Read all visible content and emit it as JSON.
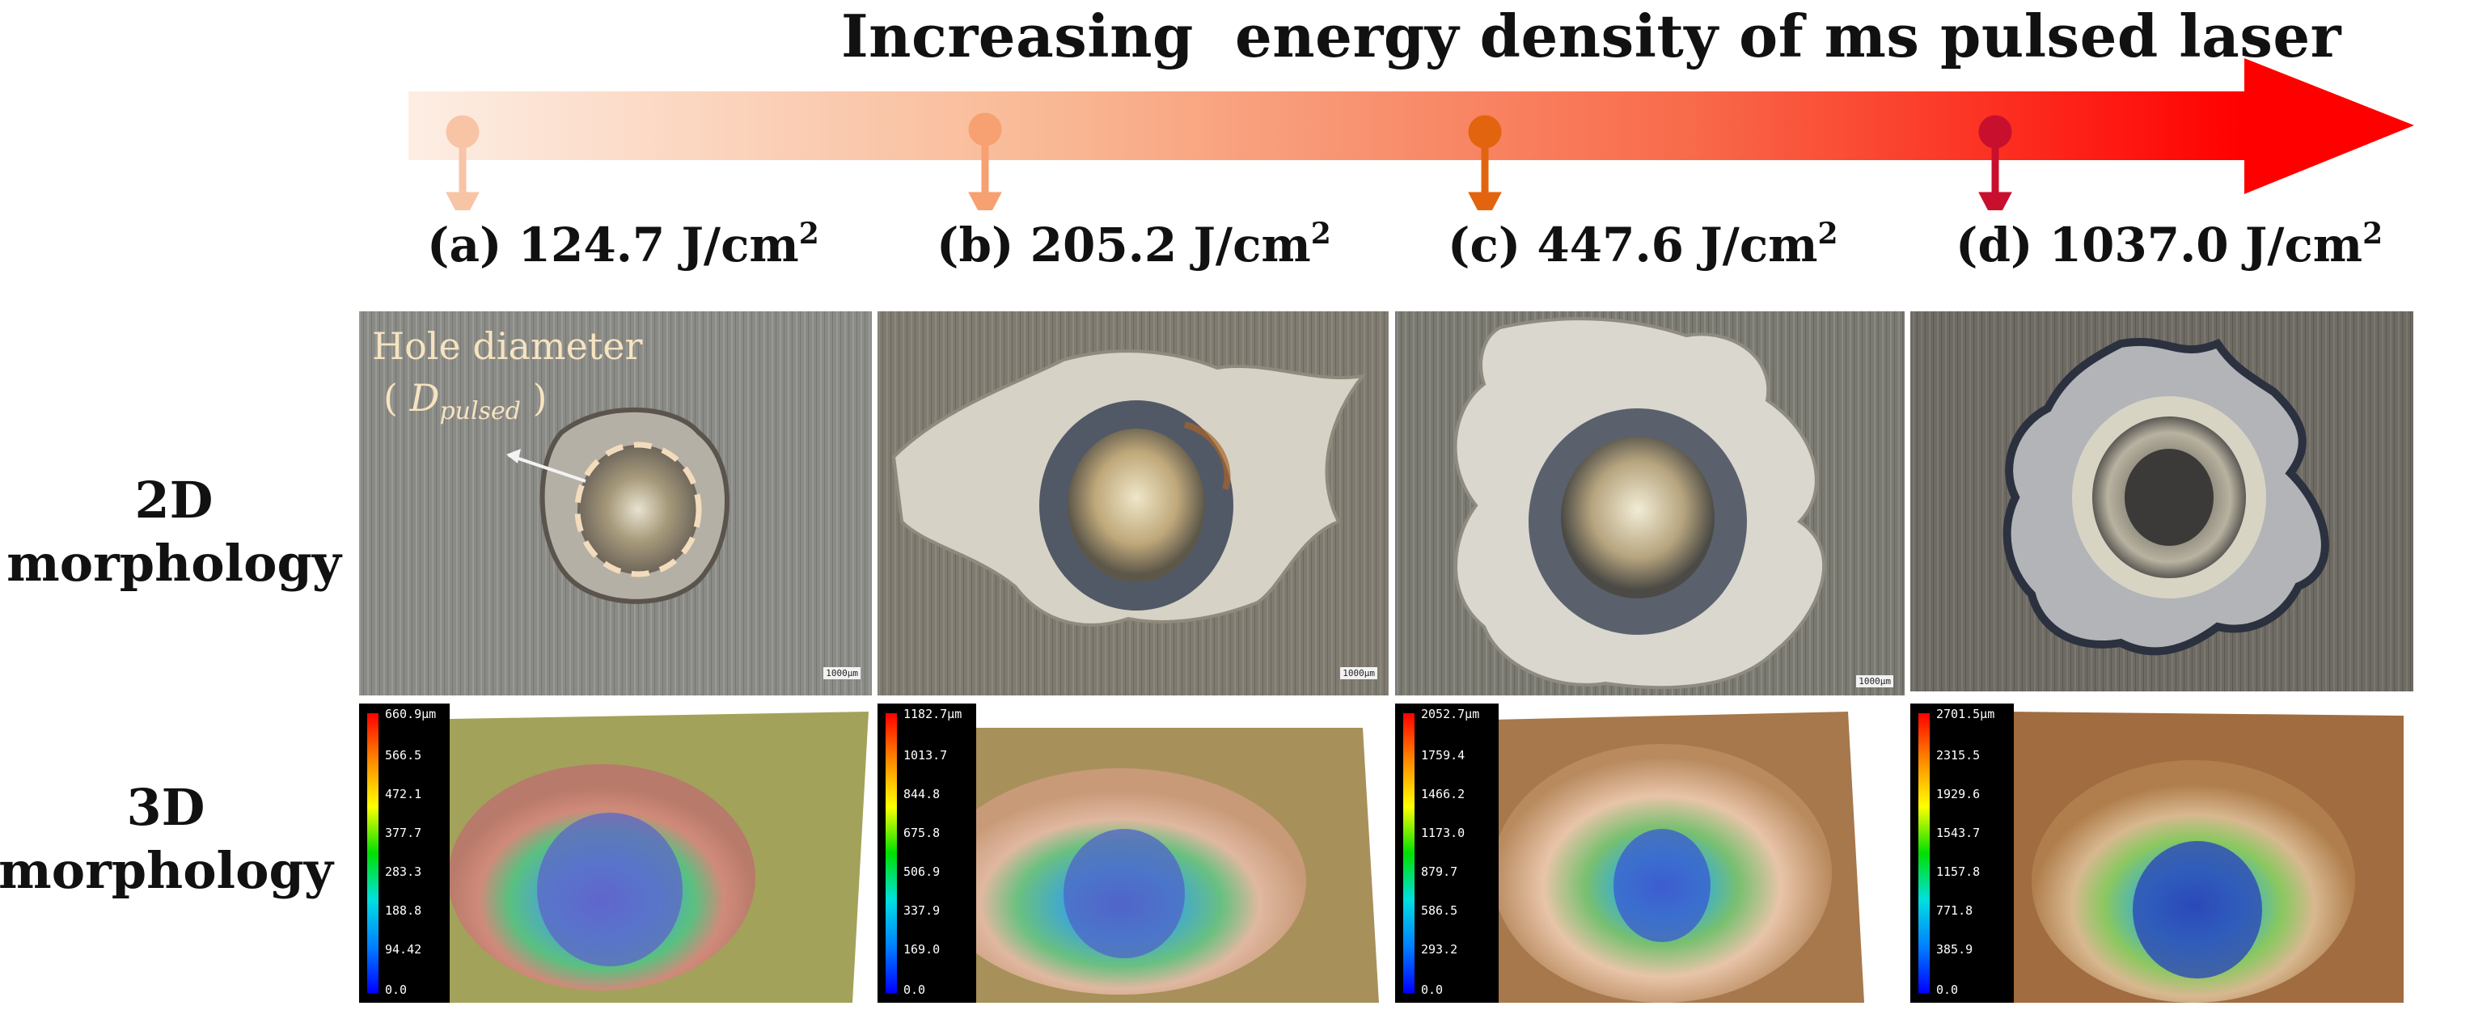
{
  "title": "Increasing  energy density of ms pulsed laser",
  "colors": {
    "arrow_start": "#fde9de",
    "arrow_end": "#ff0000",
    "marker_a": "#f8c4a6",
    "marker_b": "#f7a071",
    "marker_c": "#e3640f",
    "marker_d": "#c8102e"
  },
  "samples": [
    {
      "letter": "(a)",
      "value": "124.7 J/cm",
      "exp": "2",
      "scale_text": "1000μm",
      "colorbar": [
        "660.9μm",
        "566.5",
        "472.1",
        "377.7",
        "283.3",
        "188.8",
        "94.42",
        "0.0"
      ]
    },
    {
      "letter": "(b)",
      "value": "205.2 J/cm",
      "exp": "2",
      "scale_text": "1000μm",
      "colorbar": [
        "1182.7μm",
        "1013.7",
        "844.8",
        "675.8",
        "506.9",
        "337.9",
        "169.0",
        "0.0"
      ]
    },
    {
      "letter": "(c)",
      "value": "447.6 J/cm",
      "exp": "2",
      "scale_text": "1000μm",
      "colorbar": [
        "2052.7μm",
        "1759.4",
        "1466.2",
        "1173.0",
        "879.7",
        "586.5",
        "293.2",
        "0.0"
      ]
    },
    {
      "letter": "(d)",
      "value": "1037.0 J/cm",
      "exp": "2",
      "scale_text": "",
      "colorbar": [
        "2701.5μm",
        "2315.5",
        "1929.6",
        "1543.7",
        "1157.8",
        "771.8",
        "385.9",
        "0.0"
      ]
    }
  ],
  "row_labels": {
    "row2d_line1": "2D",
    "row2d_line2": "morphology",
    "row3d_line1": "3D",
    "row3d_line2": "morphology"
  },
  "annotation": {
    "line1": "Hole diameter",
    "paren_open": "(",
    "symbol": "D",
    "subscript": "pulsed",
    "paren_close": ")"
  }
}
